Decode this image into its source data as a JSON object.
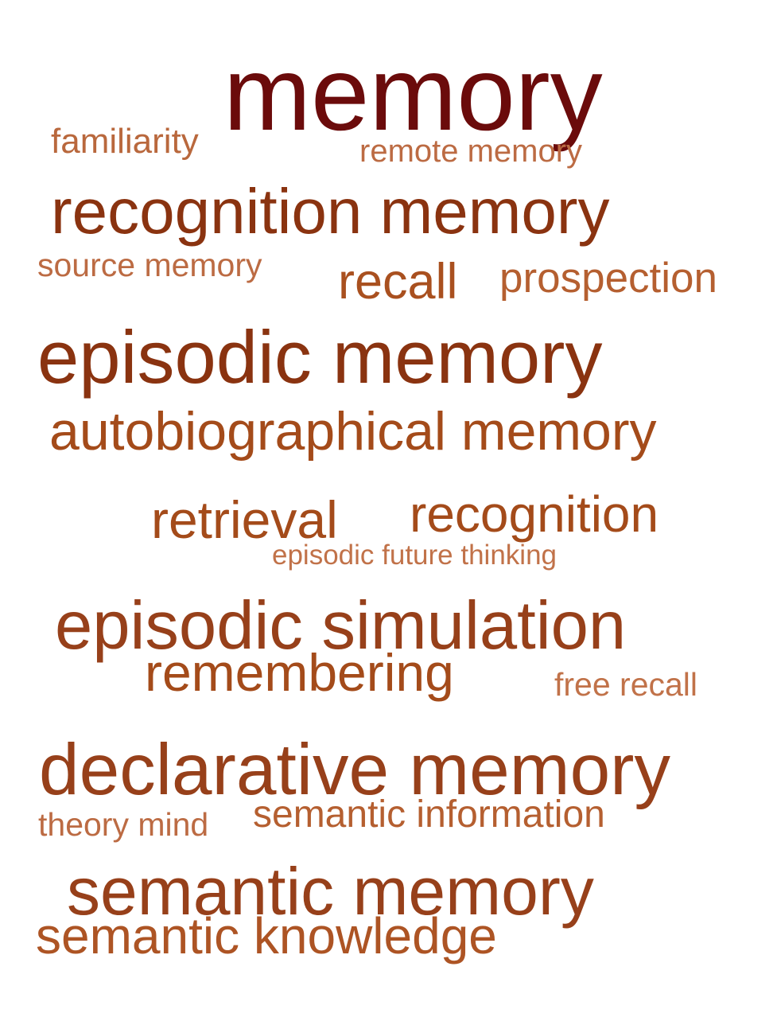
{
  "word_cloud": {
    "words": [
      {
        "id": "memory",
        "text": "memory",
        "color": "#6b0b0b",
        "rank": 1
      },
      {
        "id": "familiarity",
        "text": "familiarity",
        "color": "#b9683d",
        "rank": 6
      },
      {
        "id": "remote-memory",
        "text": "remote memory",
        "color": "#bc6b43",
        "rank": 6
      },
      {
        "id": "recognition-memory",
        "text": "recognition memory",
        "color": "#8a3310",
        "rank": 2
      },
      {
        "id": "source-memory",
        "text": "source memory",
        "color": "#bc6b43",
        "rank": 6
      },
      {
        "id": "recall",
        "text": "recall",
        "color": "#a9501f",
        "rank": 4
      },
      {
        "id": "prospection",
        "text": "prospection",
        "color": "#b55f30",
        "rank": 5
      },
      {
        "id": "episodic-memory",
        "text": "episodic memory",
        "color": "#8a3310",
        "rank": 2
      },
      {
        "id": "autobiographical-memory",
        "text": "autobiographical memory",
        "color": "#a44b1a",
        "rank": 3
      },
      {
        "id": "retrieval",
        "text": "retrieval",
        "color": "#a44b1a",
        "rank": 4
      },
      {
        "id": "recognition",
        "text": "recognition",
        "color": "#a44b1a",
        "rank": 4
      },
      {
        "id": "episodic-future-thinking",
        "text": "episodic future thinking",
        "color": "#c17249",
        "rank": 7
      },
      {
        "id": "episodic-simulation",
        "text": "episodic simulation",
        "color": "#97401a",
        "rank": 2
      },
      {
        "id": "remembering",
        "text": "remembering",
        "color": "#a44b1a",
        "rank": 4
      },
      {
        "id": "free-recall",
        "text": "free recall",
        "color": "#c17249",
        "rank": 7
      },
      {
        "id": "declarative-memory",
        "text": "declarative memory",
        "color": "#97401a",
        "rank": 2
      },
      {
        "id": "theory-mind",
        "text": "theory mind",
        "color": "#bc6b43",
        "rank": 6
      },
      {
        "id": "semantic-information",
        "text": "semantic information",
        "color": "#b55f30",
        "rank": 5
      },
      {
        "id": "semantic-memory",
        "text": "semantic memory",
        "color": "#97401a",
        "rank": 2
      },
      {
        "id": "semantic-knowledge",
        "text": "semantic knowledge",
        "color": "#ad5424",
        "rank": 3
      }
    ]
  }
}
